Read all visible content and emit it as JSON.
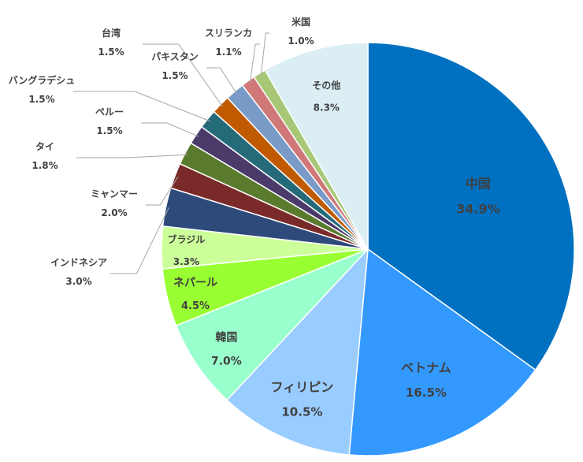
{
  "chart_data": {
    "type": "pie",
    "title": "",
    "start_angle_deg": 0,
    "direction": "clockwise",
    "slices": [
      {
        "label": "中国",
        "value_label": "34.9%",
        "value": 34.9,
        "color": "#0070c0",
        "text_color": "#404040",
        "label_mode": "inside"
      },
      {
        "label": "ベトナム",
        "value_label": "16.5%",
        "value": 16.5,
        "color": "#3399ff",
        "text_color": "#404040",
        "label_mode": "inside"
      },
      {
        "label": "フィリピン",
        "value_label": "10.5%",
        "value": 10.5,
        "color": "#99ccff",
        "text_color": "#404040",
        "label_mode": "inside"
      },
      {
        "label": "韓国",
        "value_label": "7.0%",
        "value": 7.0,
        "color": "#99ffcc",
        "text_color": "#404040",
        "label_mode": "inside"
      },
      {
        "label": "ネパール",
        "value_label": "4.5%",
        "value": 4.5,
        "color": "#99ff33",
        "text_color": "#404040",
        "label_mode": "inside"
      },
      {
        "label": "ブラジル",
        "value_label": "3.3%",
        "value": 3.3,
        "color": "#ccff99",
        "text_color": "#404040",
        "label_mode": "inside"
      },
      {
        "label": "インドネシア",
        "value_label": "3.0%",
        "value": 3.0,
        "color": "#2e4a7a",
        "text_color": "#404040",
        "label_mode": "outside"
      },
      {
        "label": "ミャンマー",
        "value_label": "2.0%",
        "value": 2.0,
        "color": "#7b2a2a",
        "text_color": "#404040",
        "label_mode": "outside"
      },
      {
        "label": "タイ",
        "value_label": "1.8%",
        "value": 1.8,
        "color": "#5a7a2e",
        "text_color": "#404040",
        "label_mode": "outside"
      },
      {
        "label": "ペルー",
        "value_label": "1.5%",
        "value": 1.5,
        "color": "#4a3b6b",
        "text_color": "#404040",
        "label_mode": "outside"
      },
      {
        "label": "バングラデシュ",
        "value_label": "1.5%",
        "value": 1.5,
        "color": "#256a78",
        "text_color": "#404040",
        "label_mode": "outside"
      },
      {
        "label": "台湾",
        "value_label": "1.5%",
        "value": 1.5,
        "color": "#c05a00",
        "text_color": "#404040",
        "label_mode": "outside"
      },
      {
        "label": "パキスタン",
        "value_label": "1.5%",
        "value": 1.5,
        "color": "#7a9ac8",
        "text_color": "#404040",
        "label_mode": "outside"
      },
      {
        "label": "スリランカ",
        "value_label": "1.1%",
        "value": 1.1,
        "color": "#d07878",
        "text_color": "#404040",
        "label_mode": "outside"
      },
      {
        "label": "米国",
        "value_label": "1.0%",
        "value": 1.0,
        "color": "#a8c878",
        "text_color": "#404040",
        "label_mode": "outside"
      },
      {
        "label": "その他",
        "value_label": "8.3%",
        "value": 8.3,
        "color": "#daeef3",
        "text_color": "#404040",
        "label_mode": "inside"
      }
    ]
  }
}
